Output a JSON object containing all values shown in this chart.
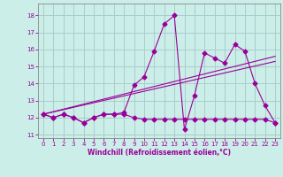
{
  "xlabel": "Windchill (Refroidissement éolien,°C)",
  "xlim": [
    -0.5,
    23.5
  ],
  "ylim": [
    10.8,
    18.7
  ],
  "yticks": [
    11,
    12,
    13,
    14,
    15,
    16,
    17,
    18
  ],
  "xticks": [
    0,
    1,
    2,
    3,
    4,
    5,
    6,
    7,
    8,
    9,
    10,
    11,
    12,
    13,
    14,
    15,
    16,
    17,
    18,
    19,
    20,
    21,
    22,
    23
  ],
  "bg_color": "#cceee8",
  "grid_color": "#aacccc",
  "line_color": "#990099",
  "line1_x": [
    0,
    1,
    2,
    3,
    4,
    5,
    6,
    7,
    8,
    9,
    10,
    11,
    12,
    13,
    14,
    15,
    16,
    17,
    18,
    19,
    20,
    21,
    22,
    23
  ],
  "line1_y": [
    12.2,
    12.0,
    12.2,
    12.0,
    11.7,
    12.0,
    12.2,
    12.2,
    12.2,
    12.0,
    11.9,
    11.9,
    11.9,
    11.9,
    11.9,
    11.9,
    11.9,
    11.9,
    11.9,
    11.9,
    11.9,
    11.9,
    11.9,
    11.7
  ],
  "line2_x": [
    0,
    1,
    2,
    3,
    4,
    5,
    6,
    7,
    8,
    9,
    10,
    11,
    12,
    13,
    14,
    15,
    16,
    17,
    18,
    19,
    20,
    21,
    22,
    23
  ],
  "line2_y": [
    12.2,
    12.0,
    12.2,
    12.0,
    11.7,
    12.0,
    12.2,
    12.2,
    12.3,
    13.9,
    14.4,
    15.9,
    17.5,
    18.0,
    11.3,
    13.3,
    15.8,
    15.5,
    15.2,
    16.3,
    15.9,
    14.0,
    12.7,
    11.7
  ],
  "line3_x": [
    0,
    23
  ],
  "line3_y": [
    12.2,
    15.6
  ],
  "line4_x": [
    0,
    23
  ],
  "line4_y": [
    12.2,
    15.3
  ]
}
